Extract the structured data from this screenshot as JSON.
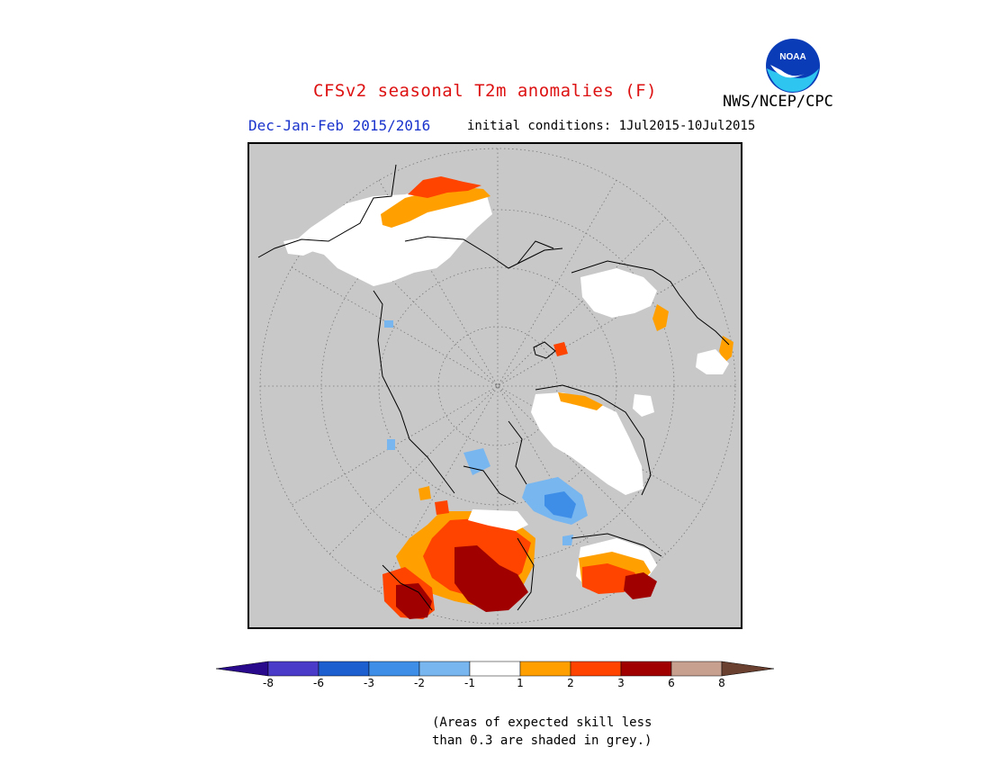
{
  "title": "CFSv2 seasonal T2m anomalies (F)",
  "subtitle_left": "Dec-Jan-Feb 2015/2016",
  "subtitle_right": "initial conditions: 1Jul2015-10Jul2015",
  "agency": "NWS/NCEP/CPC",
  "logo_text": "NOAA",
  "colors": {
    "title": "#dd1111",
    "subtitle_left": "#1a33cc",
    "map_background": "#c8c8c8",
    "coast": "#000000"
  },
  "colorbar": {
    "tick_labels": [
      "-8",
      "-6",
      "-3",
      "-2",
      "-1",
      "1",
      "2",
      "3",
      "6",
      "8"
    ],
    "colors": [
      "#2a0a8c",
      "#4a3cc8",
      "#1e5fd0",
      "#3e8ee8",
      "#78b6f0",
      "#ffffff",
      "#ffa000",
      "#ff4400",
      "#a00000",
      "#c8a090",
      "#6a4030"
    ]
  },
  "note_lines": [
    "(Areas of expected skill less",
    "than 0.3 are shaded in grey.)"
  ]
}
